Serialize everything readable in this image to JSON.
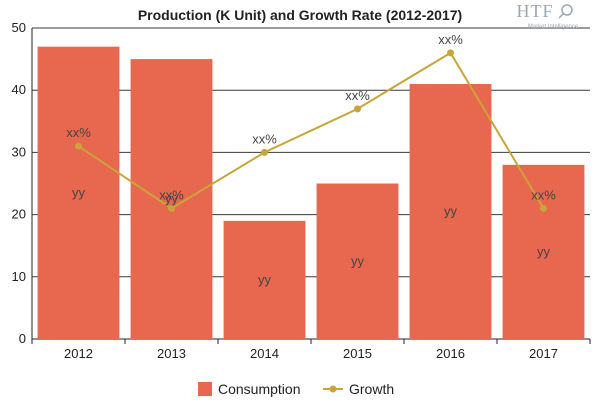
{
  "chart_data": {
    "type": "bar",
    "title": "Production (K Unit) and Growth Rate (2012-2017)",
    "categories": [
      "2012",
      "2013",
      "2014",
      "2015",
      "2016",
      "2017"
    ],
    "ylim": [
      0,
      50
    ],
    "yticks": [
      0,
      10,
      20,
      30,
      40,
      50
    ],
    "grid": true,
    "legend_position": "bottom",
    "series": [
      {
        "name": "Consumption",
        "type": "bar",
        "color": "#e8684f",
        "values": [
          47,
          45,
          19,
          25,
          41,
          28
        ],
        "data_labels": [
          "yy",
          "yy",
          "yy",
          "yy",
          "yy",
          "yy"
        ]
      },
      {
        "name": "Growth",
        "type": "line",
        "color": "#c9a438",
        "values": [
          31,
          21,
          30,
          37,
          46,
          21
        ],
        "data_labels": [
          "xx%",
          "xx%",
          "xx%",
          "xx%",
          "xx%",
          "xx%"
        ]
      }
    ]
  },
  "logo": {
    "main": "HTF",
    "sub": "Market Intelligence"
  }
}
